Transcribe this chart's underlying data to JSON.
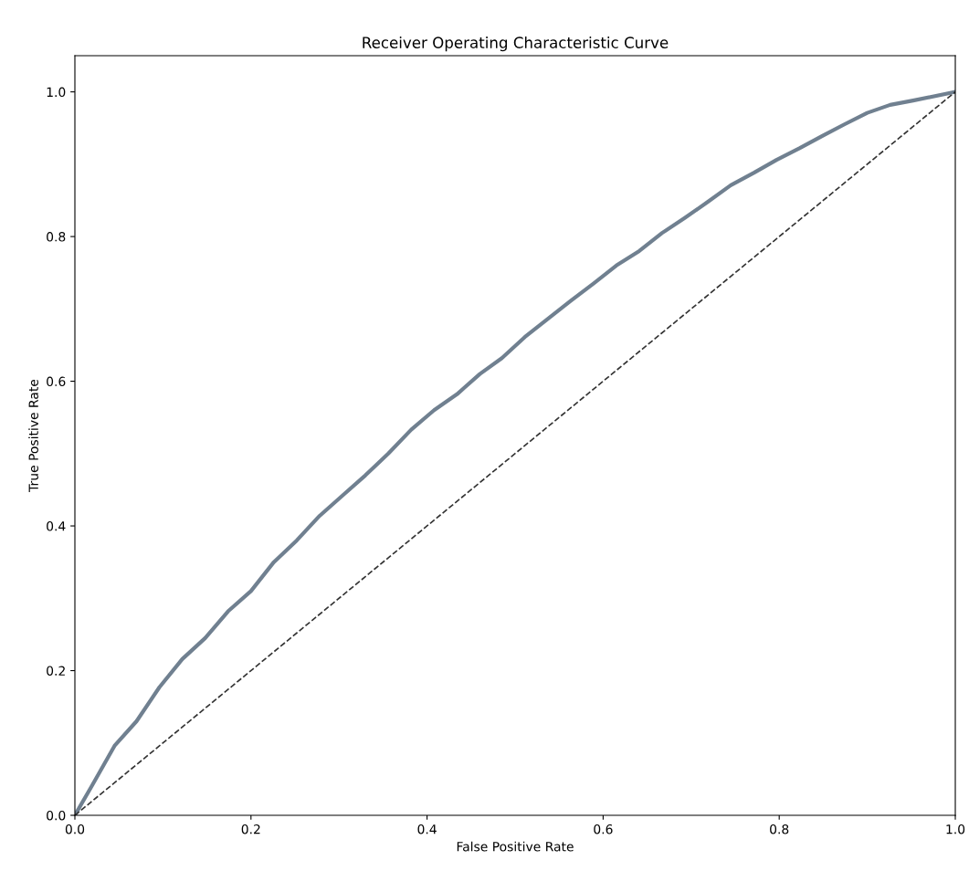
{
  "chart_data": {
    "type": "line",
    "title": "Receiver Operating Characteristic Curve",
    "xlabel": "False Positive Rate",
    "ylabel": "True Positive Rate",
    "xlim": [
      0,
      1
    ],
    "ylim": [
      0,
      1.05
    ],
    "xticks": [
      {
        "value": 0,
        "label": "0.0"
      },
      0.2,
      0.4,
      0.6,
      0.8,
      {
        "value": 1,
        "label": "1.0"
      }
    ],
    "yticks": [
      {
        "value": 0,
        "label": "0.0"
      },
      0.2,
      0.4,
      0.6,
      0.8,
      {
        "value": 1,
        "label": "1.0"
      }
    ],
    "grid": false,
    "series": [
      {
        "color": "#708090",
        "line_style": "solid",
        "x": [
          0,
          0.019,
          0.045,
          0.07,
          0.096,
          0.122,
          0.148,
          0.174,
          0.2,
          0.226,
          0.252,
          0.278,
          0.304,
          0.33,
          0.356,
          0.382,
          0.408,
          0.434,
          0.46,
          0.485,
          0.511,
          0.537,
          0.563,
          0.589,
          0.615,
          0.641,
          0.667,
          0.693,
          0.719,
          0.745,
          0.771,
          0.797,
          0.823,
          0.849,
          0.874,
          0.9,
          0.926,
          0.952,
          1
        ],
        "values": [
          0,
          0.04,
          0.096,
          0.13,
          0.177,
          0.216,
          0.245,
          0.282,
          0.31,
          0.35,
          0.38,
          0.414,
          0.442,
          0.47,
          0.5,
          0.533,
          0.56,
          0.582,
          0.61,
          0.632,
          0.661,
          0.686,
          0.711,
          0.735,
          0.76,
          0.78,
          0.805,
          0.826,
          0.848,
          0.871,
          0.888,
          0.906,
          0.922,
          0.939,
          0.955,
          0.971,
          0.982,
          0.988,
          1
        ]
      },
      {
        "color": "#333333",
        "line_style": "dashed",
        "x": [
          0,
          1
        ],
        "values": [
          0,
          1
        ]
      }
    ]
  }
}
